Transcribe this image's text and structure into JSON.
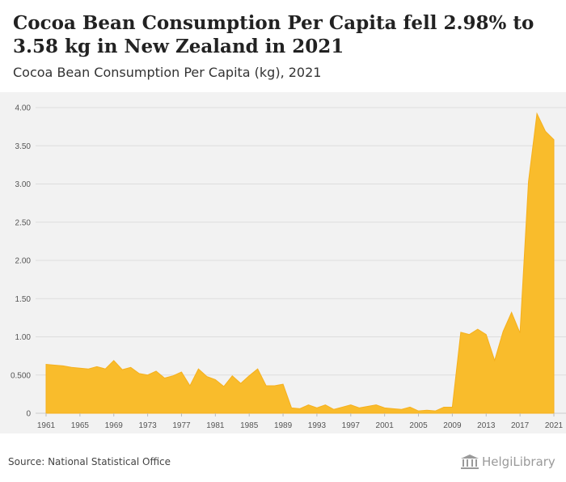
{
  "header": {
    "title": "Cocoa Bean Consumption Per Capita fell 2.98% to 3.58 kg in New Zealand in 2021",
    "subtitle": "Cocoa Bean Consumption Per Capita (kg), 2021"
  },
  "footer": {
    "source": "Source: National Statistical Office",
    "logo_text": "HelgiLibrary"
  },
  "colors": {
    "area_fill": "#f9bc2c",
    "area_stroke": "#f5b01e",
    "grid": "#dddddd",
    "background": "#f2f2f2"
  },
  "chart_data": {
    "type": "area",
    "title": "Cocoa Bean Consumption Per Capita (kg), 2021",
    "xlabel": "",
    "ylabel": "",
    "ylim": [
      0,
      4.0
    ],
    "y_ticks": [
      0,
      0.5,
      1.0,
      1.5,
      2.0,
      2.5,
      3.0,
      3.5,
      4.0
    ],
    "y_tick_labels": [
      "0",
      "0.500",
      "1.00",
      "1.50",
      "2.00",
      "2.50",
      "3.00",
      "3.50",
      "4.00"
    ],
    "x_tick_labels": [
      "1961",
      "1965",
      "1969",
      "1973",
      "1977",
      "1981",
      "1985",
      "1989",
      "1993",
      "1997",
      "2001",
      "2005",
      "2009",
      "2013",
      "2017",
      "2021"
    ],
    "x": [
      1961,
      1962,
      1963,
      1964,
      1965,
      1966,
      1967,
      1968,
      1969,
      1970,
      1971,
      1972,
      1973,
      1974,
      1975,
      1976,
      1977,
      1978,
      1979,
      1980,
      1981,
      1982,
      1983,
      1984,
      1985,
      1986,
      1987,
      1988,
      1989,
      1990,
      1991,
      1992,
      1993,
      1994,
      1995,
      1996,
      1997,
      1998,
      1999,
      2000,
      2001,
      2002,
      2003,
      2004,
      2005,
      2006,
      2007,
      2008,
      2009,
      2010,
      2011,
      2012,
      2013,
      2014,
      2015,
      2016,
      2017,
      2018,
      2019,
      2020,
      2021
    ],
    "series": [
      {
        "name": "Cocoa Bean Consumption Per Capita (kg)",
        "values": [
          0.64,
          0.63,
          0.62,
          0.6,
          0.59,
          0.58,
          0.61,
          0.58,
          0.69,
          0.57,
          0.6,
          0.52,
          0.5,
          0.55,
          0.46,
          0.49,
          0.54,
          0.36,
          0.58,
          0.48,
          0.44,
          0.35,
          0.49,
          0.39,
          0.49,
          0.58,
          0.36,
          0.36,
          0.38,
          0.07,
          0.06,
          0.11,
          0.07,
          0.11,
          0.05,
          0.08,
          0.11,
          0.07,
          0.09,
          0.11,
          0.07,
          0.06,
          0.05,
          0.08,
          0.03,
          0.04,
          0.03,
          0.08,
          0.08,
          1.06,
          1.03,
          1.1,
          1.03,
          0.69,
          1.07,
          1.32,
          1.05,
          3.03,
          3.92,
          3.69,
          3.58
        ]
      }
    ]
  }
}
